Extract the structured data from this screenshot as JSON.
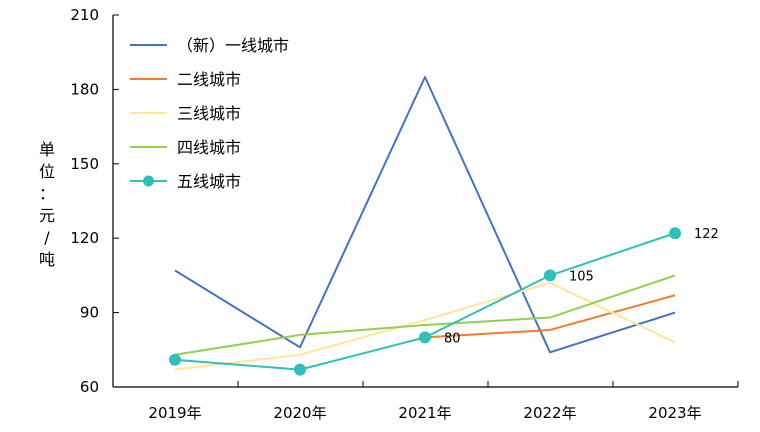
{
  "chart_data": {
    "type": "line",
    "title": "",
    "xlabel": "",
    "ylabel": "单位：元/吨",
    "categories": [
      "2019年",
      "2020年",
      "2021年",
      "2022年",
      "2023年"
    ],
    "ylim": [
      60,
      210
    ],
    "yticks": [
      60,
      90,
      120,
      150,
      180,
      210
    ],
    "grid": false,
    "legend_position": "top-left",
    "series": [
      {
        "name": "（新）一线城市",
        "color": "#4472C4",
        "markers": false,
        "values": [
          107,
          76,
          185,
          74,
          90
        ]
      },
      {
        "name": "二线城市",
        "color": "#ED7D31",
        "markers": false,
        "values": [
          null,
          null,
          80,
          83,
          97
        ]
      },
      {
        "name": "三线城市",
        "color": "#FFE699",
        "markers": false,
        "values": [
          67,
          73,
          87,
          102,
          78
        ]
      },
      {
        "name": "四线城市",
        "color": "#92D050",
        "markers": false,
        "values": [
          73,
          81,
          85,
          88,
          105
        ]
      },
      {
        "name": "五线城市",
        "color": "#30C0B8",
        "markers": true,
        "values": [
          71,
          67,
          80,
          105,
          122
        ]
      }
    ],
    "data_labels": [
      {
        "series": 4,
        "index": 2,
        "text": "80"
      },
      {
        "series": 4,
        "index": 3,
        "text": "105"
      },
      {
        "series": 4,
        "index": 4,
        "text": "122"
      }
    ]
  }
}
